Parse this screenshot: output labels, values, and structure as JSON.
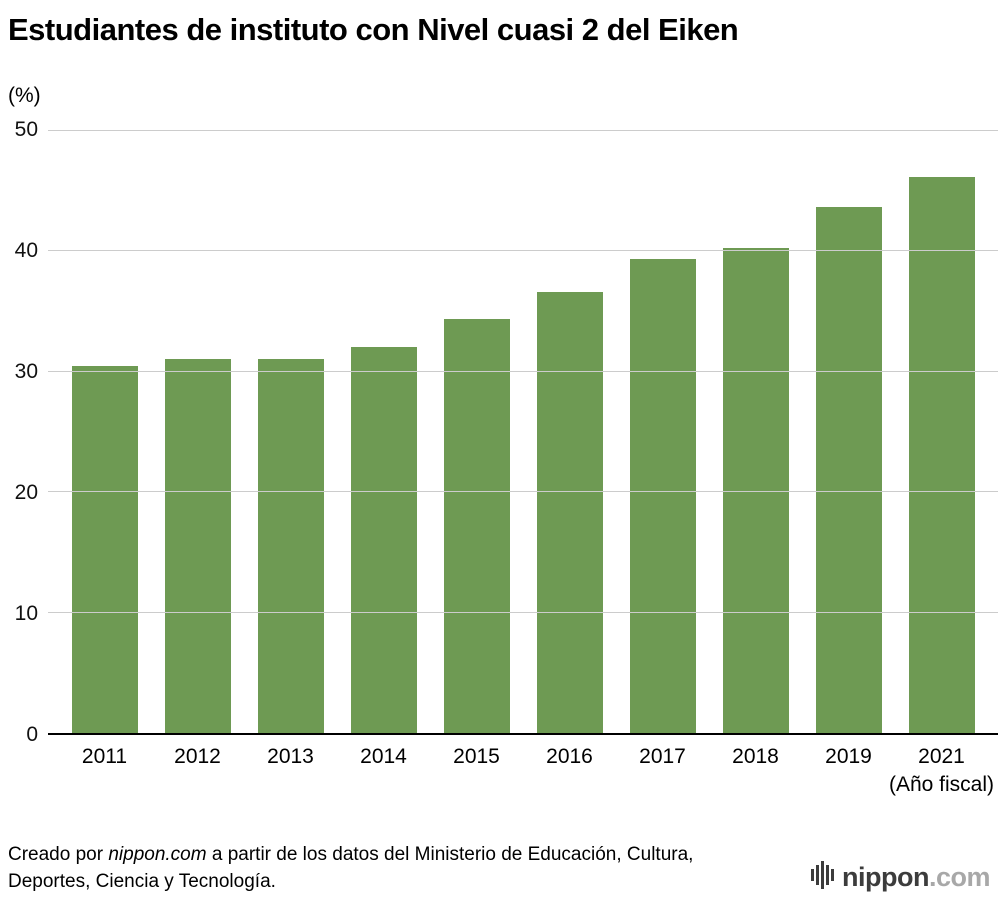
{
  "title": "Estudiantes de instituto con Nivel cuasi 2 del Eiken",
  "chart_data": {
    "type": "bar",
    "categories": [
      "2011",
      "2012",
      "2013",
      "2014",
      "2015",
      "2016",
      "2017",
      "2018",
      "2019",
      "2021"
    ],
    "values": [
      30.4,
      31.0,
      31.0,
      32.0,
      34.3,
      36.5,
      39.3,
      40.2,
      43.6,
      46.1
    ],
    "title": "Estudiantes de instituto con Nivel cuasi 2 del Eiken",
    "ylabel": "(%)",
    "xlabel": "(Año fiscal)",
    "ylim": [
      0,
      50
    ],
    "yticks": [
      0,
      10,
      20,
      30,
      40,
      50
    ],
    "grid": "horizontal",
    "legend": "none",
    "bar_color": "#6e9a53",
    "gridline_color": "#cccccc",
    "axis_color": "#000000"
  },
  "footer": {
    "credit_prefix": "Creado por ",
    "credit_source": "nippon.com",
    "credit_suffix": " a partir de los datos del Ministerio de Educación, Cultura, Deportes, Ciencia y Tecnología.",
    "logo": {
      "name": "nippon",
      "tld": ".com"
    }
  }
}
